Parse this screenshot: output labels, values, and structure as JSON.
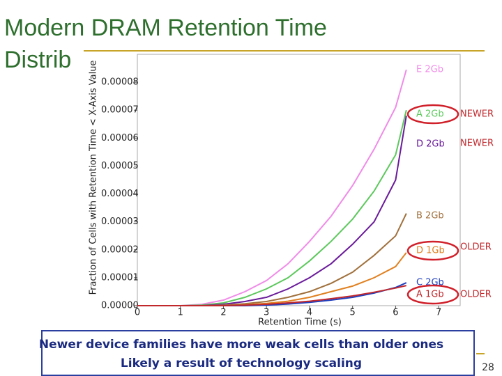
{
  "slide": {
    "title_lines": [
      "Modern DRAM Retention Time",
      "Distrib"
    ],
    "caption_lines": [
      "Newer device families have more weak cells than older ones",
      "Likely a result of technology scaling"
    ],
    "page_number": "28"
  },
  "chart_data": {
    "type": "line",
    "x_label": "Retention Time (s)",
    "y_label": "Fraction of Cells with Retention Time < X-Axis Value",
    "xlim": [
      0,
      7.5
    ],
    "xticks": [
      0,
      1,
      2,
      3,
      4,
      5,
      6,
      7
    ],
    "ylim": [
      0,
      9e-05
    ],
    "yticks": [
      {
        "value": 0,
        "label": "0.00000"
      },
      {
        "value": 1e-05,
        "label": "0.00001"
      },
      {
        "value": 2e-05,
        "label": "0.00002"
      },
      {
        "value": 3e-05,
        "label": "0.00003"
      },
      {
        "value": 4e-05,
        "label": "0.00004"
      },
      {
        "value": 5e-05,
        "label": "0.00005"
      },
      {
        "value": 6e-05,
        "label": "0.00006"
      },
      {
        "value": 7e-05,
        "label": "0.00007"
      },
      {
        "value": 8e-05,
        "label": "0.00008"
      }
    ],
    "x": [
      0,
      0.5,
      1,
      1.5,
      2,
      2.5,
      3,
      3.5,
      4,
      4.5,
      5,
      5.5,
      6,
      6.25
    ],
    "series": [
      {
        "name": "E 2Gb",
        "color": "#f08be8",
        "values": [
          0,
          0,
          0,
          5e-07,
          2e-06,
          5e-06,
          9e-06,
          1.5e-05,
          2.3e-05,
          3.2e-05,
          4.3e-05,
          5.6e-05,
          7.1e-05,
          8.45e-05
        ]
      },
      {
        "name": "A 2Gb",
        "color": "#5cc85c",
        "values": [
          0,
          0,
          0,
          2e-07,
          1e-06,
          3e-06,
          6e-06,
          1e-05,
          1.6e-05,
          2.3e-05,
          3.1e-05,
          4.1e-05,
          5.4e-05,
          7e-05
        ]
      },
      {
        "name": "D 2Gb",
        "color": "#6a1b9a",
        "values": [
          0,
          0,
          0,
          0,
          5e-07,
          1.5e-06,
          3e-06,
          6e-06,
          1e-05,
          1.5e-05,
          2.2e-05,
          3e-05,
          4.5e-05,
          6.8e-05
        ]
      },
      {
        "name": "B 2Gb",
        "color": "#a0703c",
        "values": [
          0,
          0,
          0,
          0,
          2e-07,
          7e-07,
          1.5e-06,
          3e-06,
          5e-06,
          8e-06,
          1.2e-05,
          1.8e-05,
          2.5e-05,
          3.3e-05
        ]
      },
      {
        "name": "D 1Gb",
        "color": "#e08020",
        "values": [
          0,
          0,
          0,
          0,
          0,
          3e-07,
          8e-07,
          1.6e-06,
          3e-06,
          5e-06,
          7e-06,
          1e-05,
          1.4e-05,
          1.9e-05
        ]
      },
      {
        "name": "C 2Gb",
        "color": "#1f3fbf",
        "values": [
          0,
          0,
          0,
          0,
          0,
          0,
          2e-07,
          6e-07,
          1.2e-06,
          2e-06,
          3e-06,
          4.5e-06,
          6.5e-06,
          8.2e-06
        ]
      },
      {
        "name": "A 1Gb",
        "color": "#c0282c",
        "values": [
          0,
          0,
          0,
          0,
          0,
          2e-07,
          5e-07,
          1e-06,
          1.6e-06,
          2.5e-06,
          3.5e-06,
          4.8e-06,
          6.3e-06,
          7.2e-06
        ]
      }
    ],
    "annotations": [
      "NEWER",
      "NEWER",
      "OLDER",
      "OLDER"
    ]
  }
}
